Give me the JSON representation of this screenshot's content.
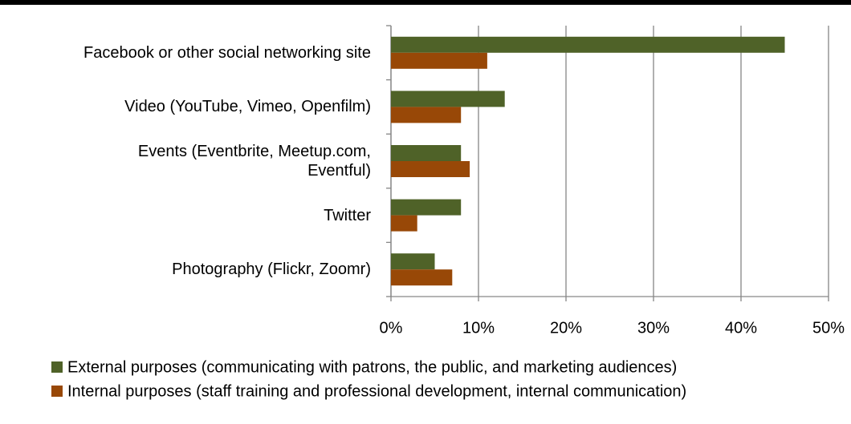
{
  "chart_data": {
    "type": "bar",
    "orientation": "horizontal",
    "categories": [
      "Facebook or other social networking site",
      "Video (YouTube, Vimeo, Openfilm)",
      "Events (Eventbrite, Meetup.com,\nEventful)",
      "Twitter",
      "Photography (Flickr, Zoomr)"
    ],
    "series": [
      {
        "name": "External purposes (communicating with patrons, the public, and marketing audiences)",
        "color": "#4f6228",
        "values": [
          45,
          13,
          8,
          8,
          5
        ]
      },
      {
        "name": "Internal purposes (staff training and professional development, internal communication)",
        "color": "#984807",
        "values": [
          11,
          8,
          9,
          3,
          7
        ]
      }
    ],
    "xlim": [
      0,
      50
    ],
    "xticks": [
      {
        "value": 0,
        "label": "0%"
      },
      {
        "value": 10,
        "label": "10%"
      },
      {
        "value": 20,
        "label": "20%"
      },
      {
        "value": 30,
        "label": "30%"
      },
      {
        "value": 40,
        "label": "40%"
      },
      {
        "value": 50,
        "label": "50%"
      }
    ],
    "grid": true,
    "legend": "bottom"
  }
}
